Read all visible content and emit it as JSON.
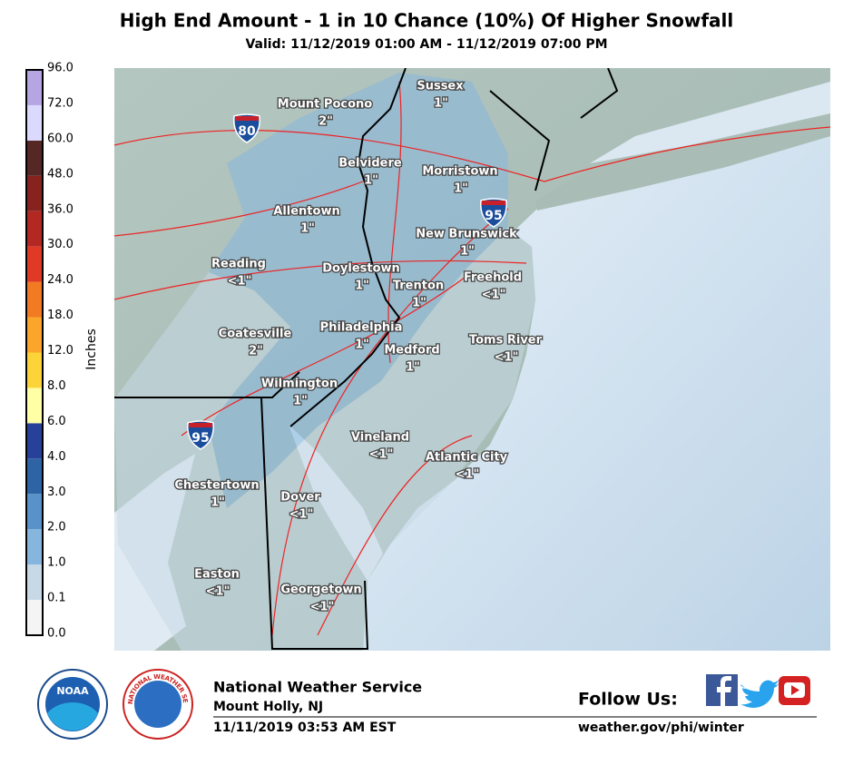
{
  "header": {
    "title": "High End Amount - 1 in 10 Chance (10%) Of Higher Snowfall",
    "subtitle": "Valid: 11/12/2019 01:00 AM - 11/12/2019 07:00 PM"
  },
  "legend": {
    "label": "Inches",
    "ticks": [
      "0.0",
      "0.1",
      "1.0",
      "2.0",
      "3.0",
      "4.0",
      "6.0",
      "8.0",
      "12.0",
      "18.0",
      "24.0",
      "30.0",
      "36.0",
      "48.0",
      "60.0",
      "72.0",
      "96.0"
    ],
    "colors": [
      "#f4f4f4",
      "#c7d9e6",
      "#86b6de",
      "#5892c8",
      "#2e64a6",
      "#27409a",
      "#ffffa6",
      "#fdd33a",
      "#fca52b",
      "#f27a22",
      "#e03a26",
      "#b42824",
      "#87231f",
      "#552725",
      "#dcd9ff",
      "#b5a5e3",
      "#8a6eb9"
    ]
  },
  "cities": [
    {
      "name": "Mount Pocono",
      "amount": "2\""
    },
    {
      "name": "Sussex",
      "amount": "1\""
    },
    {
      "name": "Belvidere",
      "amount": "1\""
    },
    {
      "name": "Morristown",
      "amount": "1\""
    },
    {
      "name": "Allentown",
      "amount": "1\""
    },
    {
      "name": "New Brunswick",
      "amount": "1\""
    },
    {
      "name": "Reading",
      "amount": "<1\""
    },
    {
      "name": "Doylestown",
      "amount": "1\""
    },
    {
      "name": "Freehold",
      "amount": "<1\""
    },
    {
      "name": "Trenton",
      "amount": "1\""
    },
    {
      "name": "Coatesville",
      "amount": "2\""
    },
    {
      "name": "Philadelphia",
      "amount": "1\""
    },
    {
      "name": "Medford",
      "amount": "1\""
    },
    {
      "name": "Toms River",
      "amount": "<1\""
    },
    {
      "name": "Wilmington",
      "amount": "1\""
    },
    {
      "name": "Vineland",
      "amount": "<1\""
    },
    {
      "name": "Atlantic City",
      "amount": "<1\""
    },
    {
      "name": "Chestertown",
      "amount": "1\""
    },
    {
      "name": "Dover",
      "amount": "<1\""
    },
    {
      "name": "Easton",
      "amount": "<1\""
    },
    {
      "name": "Georgetown",
      "amount": "<1\""
    }
  ],
  "highways": [
    "80",
    "95",
    "95"
  ],
  "footer": {
    "noaa": "NOAA",
    "nws_ring": "NATIONAL WEATHER SERVICE",
    "org": "National Weather Service",
    "office": "Mount Holly, NJ",
    "issued": "11/11/2019 03:53 AM EST",
    "follow": "Follow Us:",
    "url": "weather.gov/phi/winter"
  }
}
